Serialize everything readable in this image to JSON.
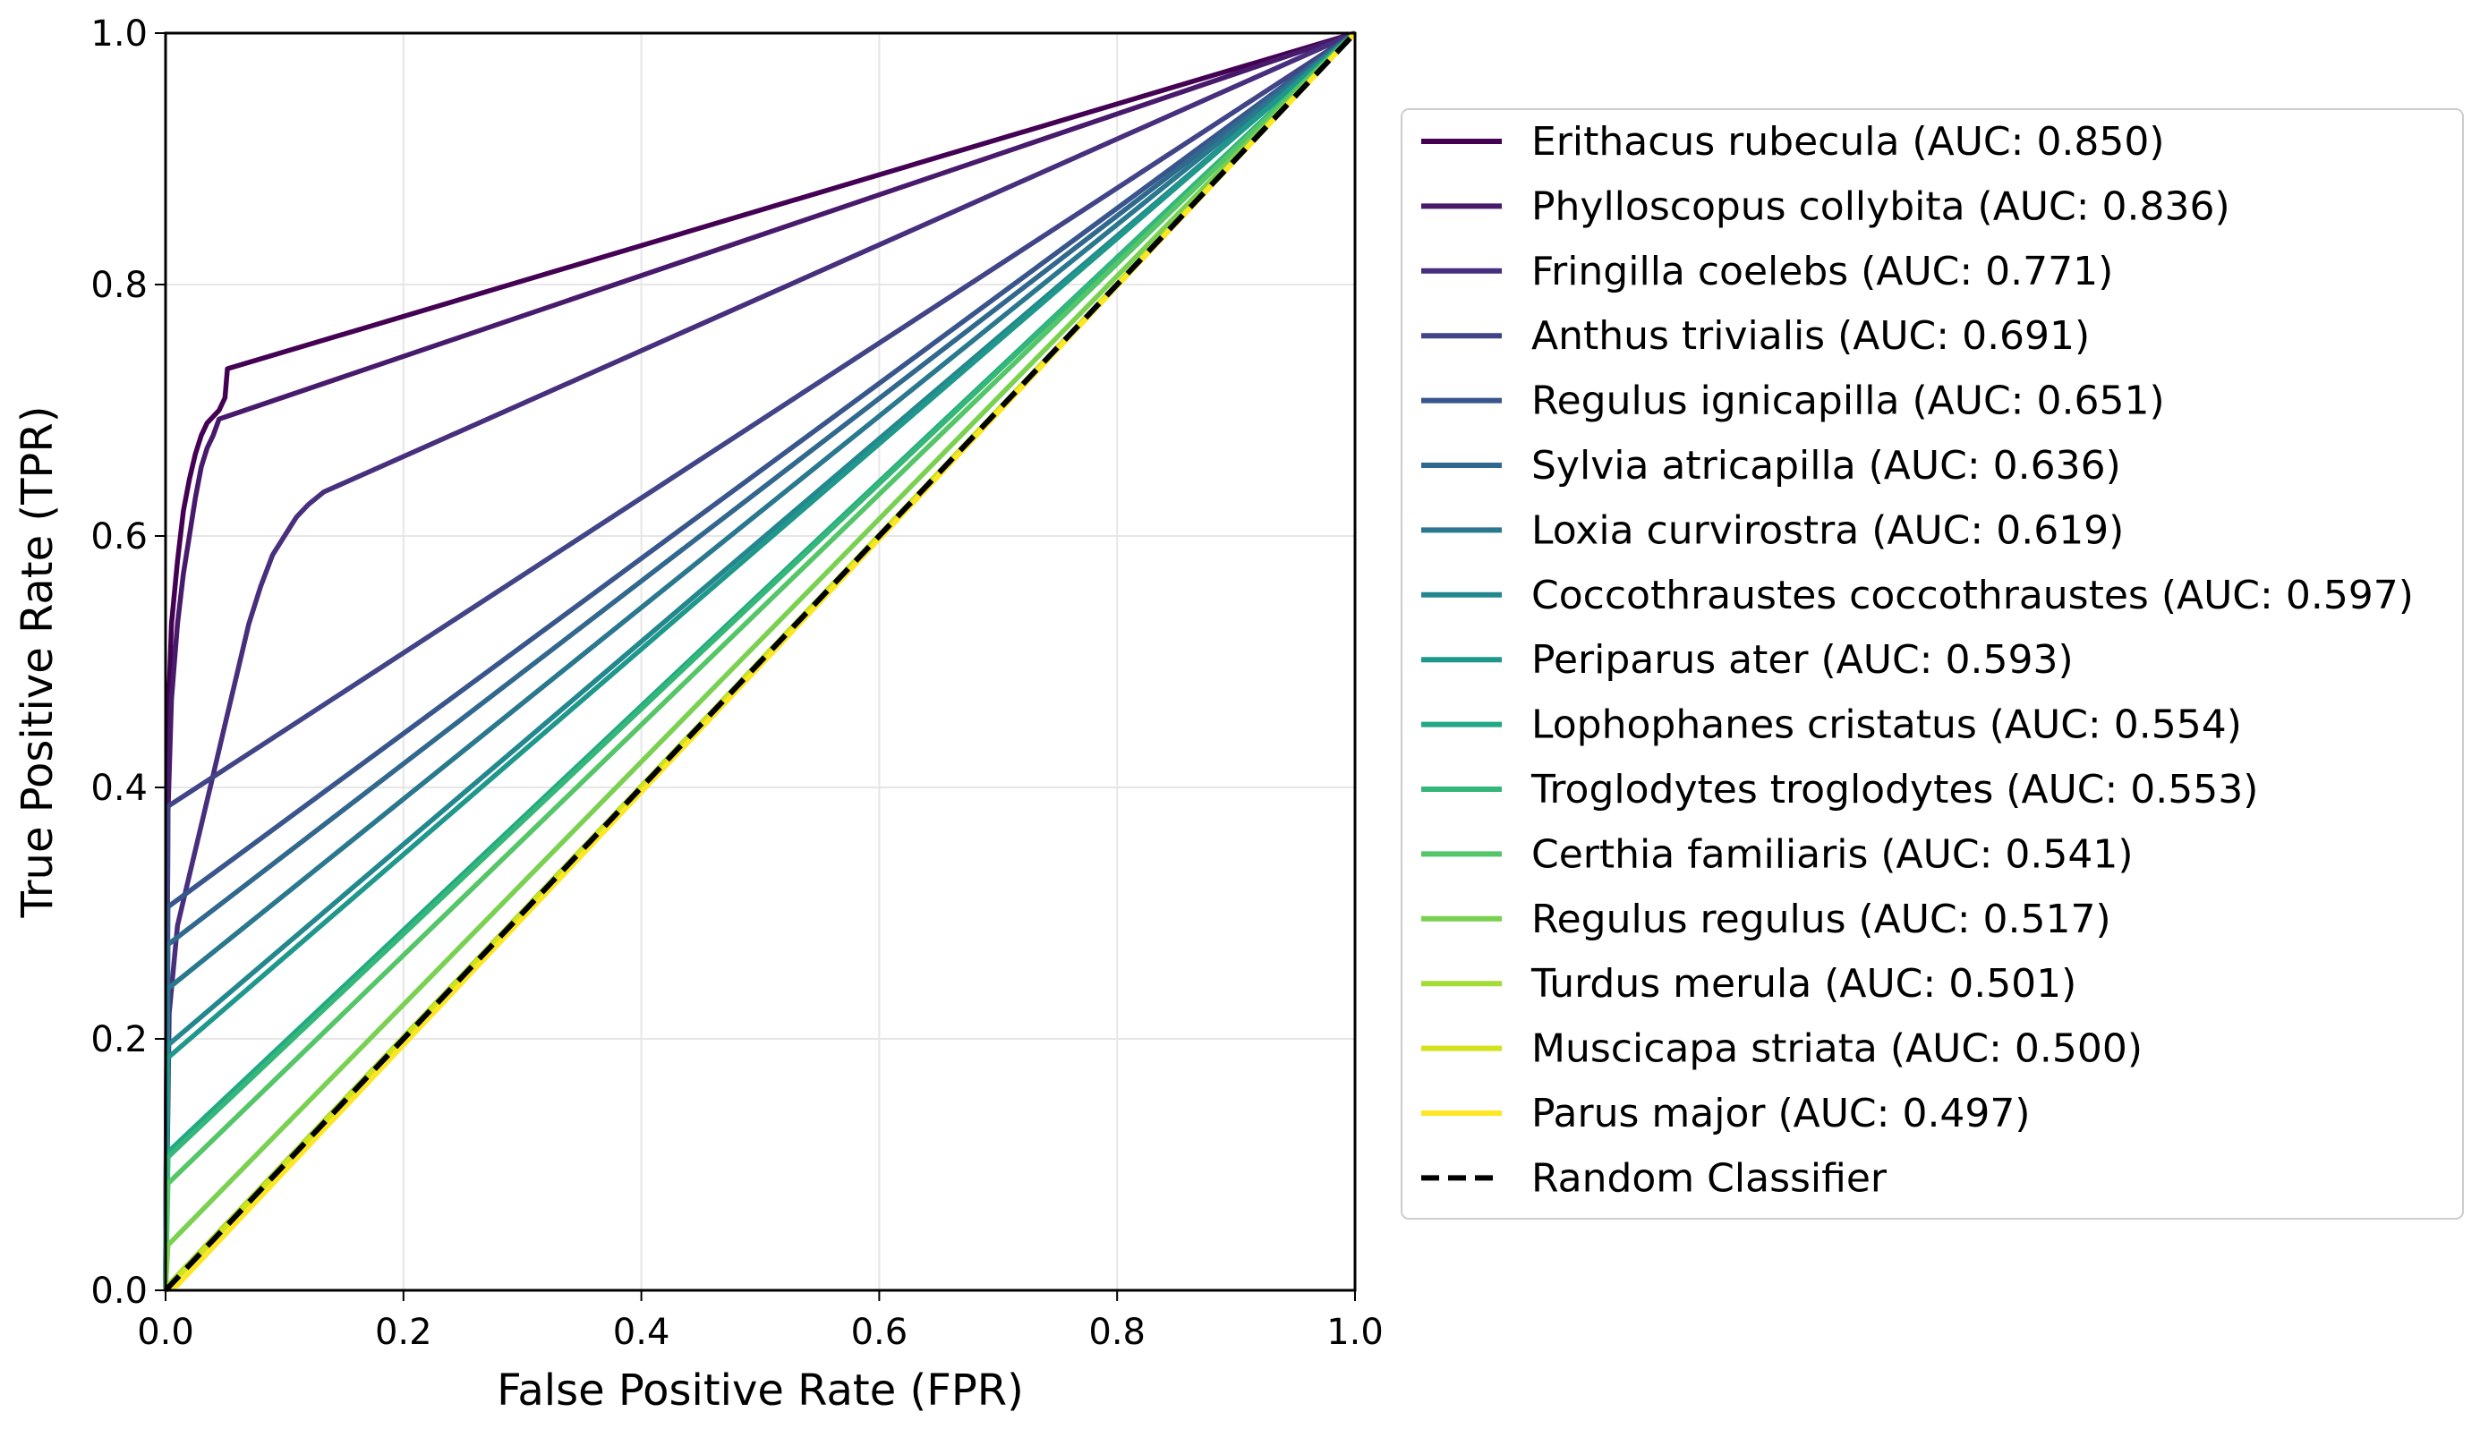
{
  "chart_data": {
    "type": "line",
    "title": "",
    "xlabel": "False Positive Rate (FPR)",
    "ylabel": "True Positive Rate (TPR)",
    "xlim": [
      0,
      1
    ],
    "ylim": [
      0,
      1
    ],
    "xticks": [
      "0.0",
      "0.2",
      "0.4",
      "0.6",
      "0.8",
      "1.0"
    ],
    "yticks": [
      "0.0",
      "0.2",
      "0.4",
      "0.6",
      "0.8",
      "1.0"
    ],
    "grid": true,
    "legend_position": "right, outside plot",
    "series": [
      {
        "name": "Erithacus rubecula (AUC: 0.850)",
        "color": "#440154",
        "x": [
          0,
          0.002,
          0.005,
          0.01,
          0.015,
          0.02,
          0.025,
          0.03,
          0.035,
          0.04,
          0.045,
          0.05,
          0.052,
          1.0
        ],
        "y": [
          0,
          0.45,
          0.53,
          0.58,
          0.62,
          0.645,
          0.665,
          0.68,
          0.69,
          0.695,
          0.7,
          0.71,
          0.733,
          1.0
        ]
      },
      {
        "name": "Phylloscopus collybita (AUC: 0.836)",
        "color": "#481a6c",
        "x": [
          0,
          0.002,
          0.005,
          0.01,
          0.015,
          0.02,
          0.025,
          0.03,
          0.035,
          0.04,
          0.045,
          1.0
        ],
        "y": [
          0,
          0.38,
          0.47,
          0.53,
          0.57,
          0.6,
          0.63,
          0.655,
          0.67,
          0.68,
          0.693,
          1.0
        ]
      },
      {
        "name": "Fringilla coelebs (AUC: 0.771)",
        "color": "#472f7d",
        "x": [
          0,
          0.003,
          0.01,
          0.02,
          0.03,
          0.04,
          0.05,
          0.06,
          0.07,
          0.08,
          0.09,
          0.1,
          0.11,
          0.12,
          0.133,
          1.0
        ],
        "y": [
          0,
          0.22,
          0.29,
          0.33,
          0.37,
          0.41,
          0.45,
          0.49,
          0.53,
          0.56,
          0.585,
          0.6,
          0.615,
          0.625,
          0.635,
          1.0
        ]
      },
      {
        "name": "Anthus trivialis (AUC: 0.691)",
        "color": "#414487",
        "x": [
          0,
          0.002,
          1.0
        ],
        "y": [
          0,
          0.385,
          1.0
        ]
      },
      {
        "name": "Regulus ignicapilla (AUC: 0.651)",
        "color": "#39568c",
        "x": [
          0,
          0.002,
          1.0
        ],
        "y": [
          0,
          0.305,
          1.0
        ]
      },
      {
        "name": "Sylvia atricapilla (AUC: 0.636)",
        "color": "#31688e",
        "x": [
          0,
          0.002,
          1.0
        ],
        "y": [
          0,
          0.275,
          1.0
        ]
      },
      {
        "name": "Loxia curvirostra (AUC: 0.619)",
        "color": "#2a788e",
        "x": [
          0,
          0.002,
          1.0
        ],
        "y": [
          0,
          0.24,
          1.0
        ]
      },
      {
        "name": "Coccothraustes coccothraustes (AUC: 0.597)",
        "color": "#23888e",
        "x": [
          0,
          0.002,
          1.0
        ],
        "y": [
          0,
          0.195,
          1.0
        ]
      },
      {
        "name": "Periparus ater (AUC: 0.593)",
        "color": "#1f988b",
        "x": [
          0,
          0.002,
          1.0
        ],
        "y": [
          0,
          0.185,
          1.0
        ]
      },
      {
        "name": "Lophophanes cristatus (AUC: 0.554)",
        "color": "#22a884",
        "x": [
          0,
          0.002,
          1.0
        ],
        "y": [
          0,
          0.11,
          1.0
        ]
      },
      {
        "name": "Troglodytes troglodytes (AUC: 0.553)",
        "color": "#35b779",
        "x": [
          0,
          0.002,
          1.0
        ],
        "y": [
          0,
          0.106,
          1.0
        ]
      },
      {
        "name": "Certhia familiaris (AUC: 0.541)",
        "color": "#54c568",
        "x": [
          0,
          0.002,
          1.0
        ],
        "y": [
          0,
          0.085,
          1.0
        ]
      },
      {
        "name": "Regulus regulus (AUC: 0.517)",
        "color": "#7ad151",
        "x": [
          0,
          0.002,
          1.0
        ],
        "y": [
          0,
          0.036,
          1.0
        ]
      },
      {
        "name": "Turdus merula (AUC: 0.501)",
        "color": "#a5db36",
        "x": [
          0,
          0.002,
          1.0
        ],
        "y": [
          0,
          0.004,
          1.0
        ]
      },
      {
        "name": "Muscicapa striata (AUC: 0.500)",
        "color": "#d2e21b",
        "x": [
          0,
          1.0
        ],
        "y": [
          0,
          1.0
        ]
      },
      {
        "name": "Parus major (AUC: 0.497)",
        "color": "#fde725",
        "x": [
          0,
          0.01,
          1.0
        ],
        "y": [
          0,
          0.004,
          1.0
        ]
      }
    ],
    "baseline": {
      "name": "Random Classifier",
      "color": "#000000",
      "style": "dashed",
      "x": [
        0,
        1
      ],
      "y": [
        0,
        1
      ]
    }
  }
}
